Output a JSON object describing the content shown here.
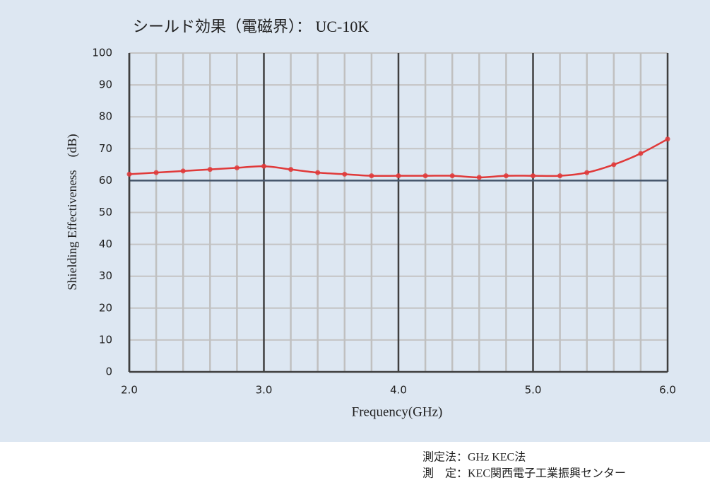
{
  "chart_data": {
    "type": "line",
    "title": "シールド効果（電磁界）： UC-10K",
    "xlabel": "Frequency(GHz)",
    "ylabel": "Shielding Effectiveness　(dB)",
    "x": [
      2.0,
      2.2,
      2.4,
      2.6,
      2.8,
      3.0,
      3.2,
      3.4,
      3.6,
      3.8,
      4.0,
      4.2,
      4.4,
      4.6,
      4.8,
      5.0,
      5.2,
      5.4,
      5.6,
      5.8,
      6.0
    ],
    "series": [
      {
        "color": "#e03a3a",
        "values": [
          62,
          62.5,
          63,
          63.5,
          64,
          64.5,
          63.5,
          62.5,
          62,
          61.5,
          61.5,
          61.5,
          61.5,
          61,
          61.5,
          61.5,
          61.5,
          62.5,
          65,
          68.5,
          73
        ]
      }
    ],
    "xlim": [
      2,
      6
    ],
    "xticks": [
      {
        "value": 2,
        "label": "2.0"
      },
      {
        "value": 3,
        "label": "3.0"
      },
      {
        "value": 4,
        "label": "4.0"
      },
      {
        "value": 5,
        "label": "5.0"
      },
      {
        "value": 6,
        "label": "6.0"
      }
    ],
    "xminorticks": [
      2.2,
      2.4,
      2.6,
      2.8,
      3.2,
      3.4,
      3.6,
      3.8,
      4.2,
      4.4,
      4.6,
      4.8,
      5.2,
      5.4,
      5.6,
      5.8
    ],
    "ylim": [
      0,
      100
    ],
    "yticks": [
      0,
      10,
      20,
      30,
      40,
      50,
      60,
      70,
      80,
      90,
      100
    ],
    "reference_line": 60,
    "grid": true,
    "notes": [
      "測定法：GHz KEC法",
      "測　定：KEC関西電子工業振興センター"
    ]
  }
}
